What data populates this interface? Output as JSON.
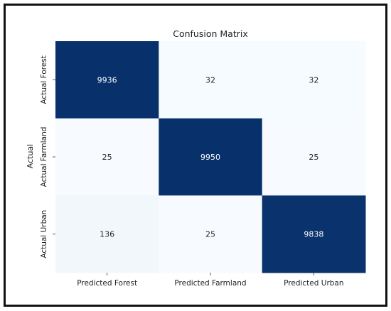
{
  "chart_data": {
    "type": "heatmap",
    "title": "Confusion Matrix",
    "xlabel": "",
    "ylabel": "Actual",
    "x_categories": [
      "Predicted Forest",
      "Predicted Farmland",
      "Predicted Urban"
    ],
    "y_categories": [
      "Actual Forest",
      "Actual Farmland",
      "Actual Urban"
    ],
    "values": [
      [
        9936,
        32,
        32
      ],
      [
        25,
        9950,
        25
      ],
      [
        136,
        25,
        9838
      ]
    ],
    "colorbar": false,
    "colors": {
      "high": "#08306b",
      "low": "#f7fbff",
      "text_dark": "#262626",
      "text_light": "#ffffff"
    }
  }
}
